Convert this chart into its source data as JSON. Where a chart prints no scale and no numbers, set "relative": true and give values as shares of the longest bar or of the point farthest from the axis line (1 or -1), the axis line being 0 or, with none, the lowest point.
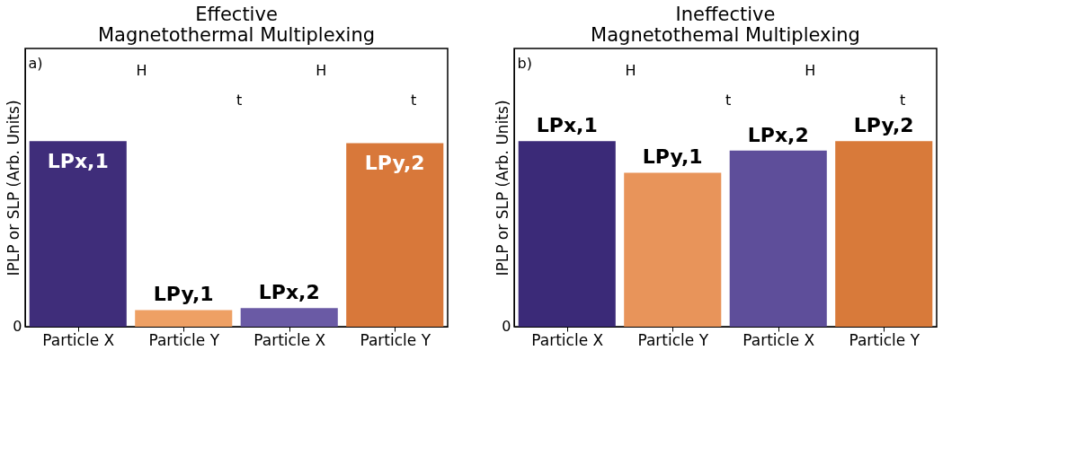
{
  "chart_data": [
    {
      "type": "bar",
      "title": "Effective\nMagnetothermal Multiplexing",
      "ylabel": "IPLP or SLP (Arb. Units)",
      "relative": true,
      "categories": [
        "Particle X",
        "Particle Y",
        "Particle X",
        "Particle Y"
      ],
      "values": [
        1.0,
        0.09,
        0.1,
        0.99
      ],
      "colors": [
        "#3f2d7a",
        "#eea064",
        "#6a5aa5",
        "#d8783a"
      ],
      "annotations": [
        "LPx,1",
        "LPy,1",
        "LPx,2",
        "LPy,2",
        "a)",
        "H",
        "t",
        "H",
        "t",
        "0"
      ]
    },
    {
      "type": "bar",
      "title": "Ineffective\nMagnetothemal Multiplexing",
      "ylabel": "IPLP or SLP (Arb. Units)",
      "relative": true,
      "categories": [
        "Particle X",
        "Particle Y",
        "Particle X",
        "Particle Y"
      ],
      "values": [
        1.0,
        0.83,
        0.95,
        1.0
      ],
      "colors": [
        "#3b2a78",
        "#e8945a",
        "#5e4e9a",
        "#d87a3a"
      ],
      "annotations": [
        "LPx,1",
        "LPy,1",
        "LPx,2",
        "LPy,2",
        "b)",
        "H",
        "t",
        "H",
        "t",
        "0"
      ]
    }
  ]
}
